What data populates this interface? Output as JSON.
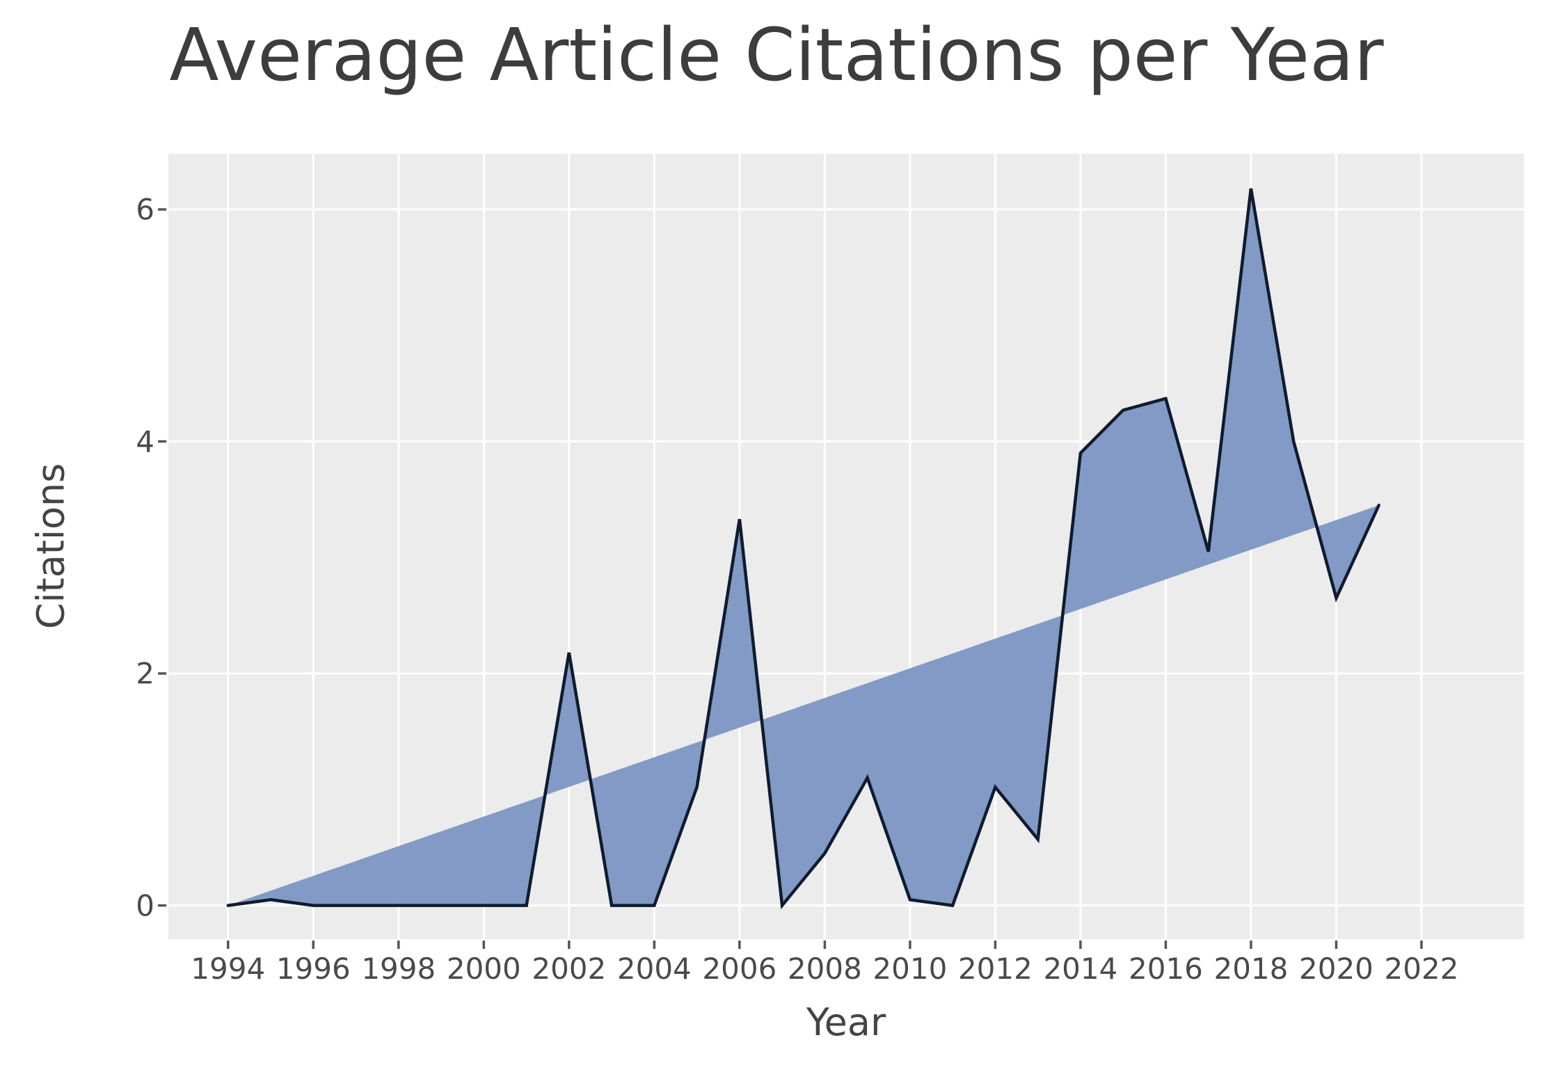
{
  "title": "Average Article Citations per Year",
  "axes": {
    "x_label": "Year",
    "y_label": "Citations",
    "x_ticks": [
      1994,
      1996,
      1998,
      2000,
      2002,
      2004,
      2006,
      2008,
      2010,
      2012,
      2014,
      2016,
      2018,
      2020,
      2022
    ],
    "y_ticks": [
      0,
      2,
      4,
      6
    ]
  },
  "colors": {
    "fill": "#7A93C2",
    "line": "#101B2E",
    "plot_background": "#ECECEC",
    "gridline": "#FFFFFF",
    "tick_mark": "#555555",
    "title_text": "#3d3d3d",
    "axis_text": "#444444"
  },
  "chart_data": {
    "type": "area",
    "title": "Average Article Citations per Year",
    "xlabel": "Year",
    "ylabel": "Citations",
    "xlim": [
      1992.6,
      2024.4
    ],
    "ylim": [
      -0.29,
      6.48
    ],
    "grid": "white major gridlines on gray panel",
    "legend": "none",
    "x": [
      1994,
      1995,
      1996,
      1997,
      1998,
      1999,
      2000,
      2001,
      2002,
      2003,
      2004,
      2005,
      2006,
      2007,
      2008,
      2009,
      2010,
      2011,
      2012,
      2013,
      2014,
      2015,
      2016,
      2017,
      2018,
      2019,
      2020,
      2021
    ],
    "series": [
      {
        "name": "average-citations",
        "style": "dark navy polyline with steel-blue fill between line and baseline chord",
        "values": [
          0,
          0.05,
          0,
          0,
          0,
          0,
          0,
          0,
          2.18,
          0,
          0,
          1.02,
          3.33,
          0,
          0.45,
          1.1,
          0.05,
          0,
          1.02,
          0.57,
          3.9,
          4.27,
          4.37,
          3.05,
          6.18,
          4.0,
          2.65,
          3.45
        ]
      },
      {
        "name": "linear-baseline-chord",
        "style": "unstroked straight edge of fill from first point (1994, 0) to last point (2021, 3.45)",
        "values": [
          0,
          0.13,
          0.26,
          0.38,
          0.51,
          0.64,
          0.77,
          0.89,
          1.02,
          1.15,
          1.28,
          1.41,
          1.53,
          1.66,
          1.79,
          1.92,
          2.04,
          2.17,
          2.3,
          2.43,
          2.56,
          2.68,
          2.81,
          2.94,
          3.07,
          3.19,
          3.32,
          3.45
        ]
      }
    ]
  }
}
